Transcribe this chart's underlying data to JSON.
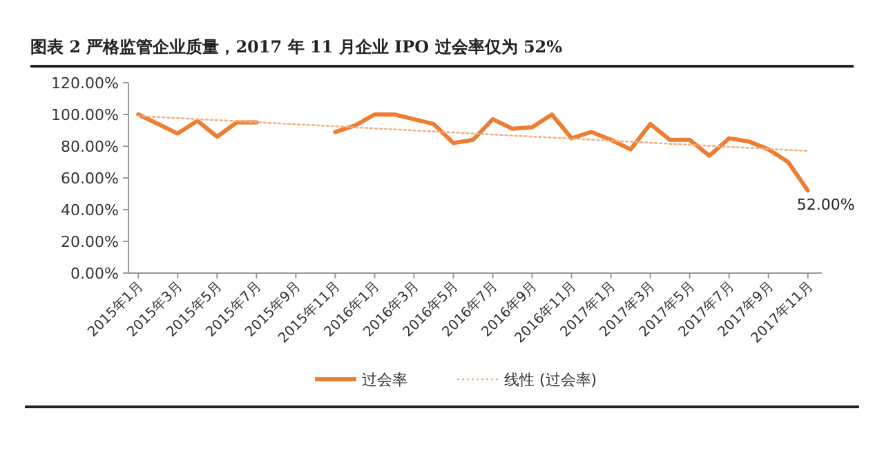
{
  "chart_data": {
    "type": "line",
    "title": "图表 2  严格监管企业质量，2017 年 11 月企业 IPO 过会率仅为 52%",
    "categories": [
      "2015年1月",
      null,
      "2015年3月",
      null,
      "2015年5月",
      null,
      "2015年7月",
      null,
      "2015年9月",
      null,
      "2015年11月",
      null,
      "2016年1月",
      null,
      "2016年3月",
      null,
      "2016年5月",
      null,
      "2016年7月",
      null,
      "2016年9月",
      null,
      "2016年11月",
      null,
      "2017年1月",
      null,
      "2017年3月",
      null,
      "2017年5月",
      null,
      "2017年7月",
      null,
      "2017年9月",
      null,
      "2017年11月"
    ],
    "series": [
      {
        "name": "过会率",
        "color": "#ed7d31",
        "line_style": "solid",
        "values": [
          100,
          94,
          88,
          96,
          86,
          95,
          95,
          null,
          null,
          null,
          89,
          93,
          100,
          100,
          97,
          94,
          82,
          84,
          97,
          91,
          92,
          100,
          85,
          89,
          84,
          78,
          94,
          84,
          84,
          74,
          85,
          83,
          78,
          70,
          52
        ],
        "value_labels": [
          null,
          null,
          null,
          null,
          null,
          null,
          null,
          null,
          null,
          null,
          null,
          null,
          null,
          null,
          null,
          null,
          null,
          null,
          null,
          null,
          null,
          null,
          null,
          null,
          null,
          null,
          null,
          null,
          null,
          null,
          null,
          null,
          null,
          null,
          "52.00%"
        ]
      },
      {
        "name": "线性 (过会率)",
        "color": "#f4b183",
        "line_style": "dotted",
        "x": [
          "2015年1月",
          "2017年11月"
        ],
        "values": [
          99,
          77
        ]
      }
    ],
    "ylim": [
      0,
      120
    ],
    "yticks": [
      {
        "value": 0,
        "label": "0.00%"
      },
      {
        "value": 20,
        "label": "20.00%"
      },
      {
        "value": 40,
        "label": "40.00%"
      },
      {
        "value": 60,
        "label": "60.00%"
      },
      {
        "value": 80,
        "label": "80.00%"
      },
      {
        "value": 100,
        "label": "100.00%"
      },
      {
        "value": 120,
        "label": "120.00%"
      }
    ],
    "grid": false,
    "legend": "bottom",
    "marker": "none"
  }
}
